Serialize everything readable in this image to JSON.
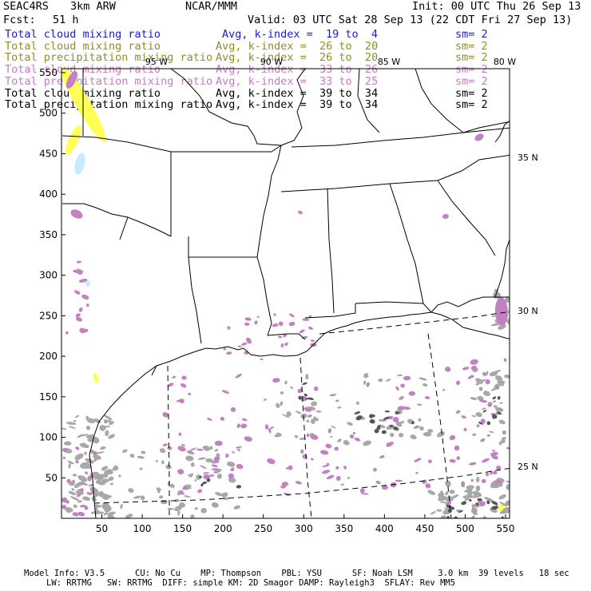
{
  "header": {
    "project": "SEAC4RS",
    "model": "3km ARW",
    "org": "NCAR/MMM",
    "init": "Init: 00 UTC Thu 26 Sep 13",
    "fcst_label": "Fcst:",
    "fcst_value": "51 h",
    "valid": "Valid: 03 UTC Sat 28 Sep 13 (22 CDT Fri 27 Sep 13)"
  },
  "legend_rows": [
    {
      "field": "Total cloud mixing ratio",
      "avg": "Avg, k-index =  19 to  4",
      "sm": "sm= 2",
      "color": "#1b1bd0"
    },
    {
      "field": "Total cloud mixing ratio",
      "avg": "Avg, k-index =  26 to  20",
      "sm": "sm= 2",
      "color": "#8f8f26"
    },
    {
      "field": "Total precipitation mixing ratio",
      "avg": "Avg, k-index =  26 to  20",
      "sm": "sm= 2",
      "color": "#8f8f26"
    },
    {
      "field": "Total cloud mixing ratio",
      "avg": "Avg, k-index =  33 to  26",
      "sm": "sm= 2",
      "color": "#c87ac8"
    },
    {
      "field": "Total precipitation mixing ratio",
      "avg": "Avg, k-index =  33 to  25",
      "sm": "sm= 2",
      "color": "#c87ac8"
    },
    {
      "field": "Total cloud mixing ratio",
      "avg": "Avg, k-index =  39 to  34",
      "sm": "sm= 2",
      "color": "#000000"
    },
    {
      "field": "Total precipitation mixing ratio",
      "avg": "Avg, k-index =  39 to  34",
      "sm": "sm= 2",
      "color": "#000000"
    }
  ],
  "map": {
    "lon_labels": [
      "95 W",
      "90 W",
      "85 W",
      "80 W"
    ],
    "lat_labels": [
      "35 N",
      "30 N",
      "25 N"
    ],
    "x_ticks": [
      "50",
      "100",
      "150",
      "200",
      "250",
      "300",
      "350",
      "400",
      "450",
      "500",
      "550"
    ],
    "y_ticks": [
      "50",
      "100",
      "150",
      "200",
      "250",
      "300",
      "350",
      "400",
      "450",
      "500",
      "550"
    ]
  },
  "colors": {
    "cloud_magenta": "#c281c2",
    "cloud_gray": "#a8a8a8",
    "cloud_dark": "#555555",
    "cloud_yellow": "#ffff55",
    "cloud_lightblue": "#c8ecff"
  },
  "footer": {
    "line1": "Model Info: V3.5      CU: No Cu    MP: Thompson    PBL: YSU      SF: Noah LSM     3.0 km  39 levels   18 sec",
    "line2": "LW: RRTMG   SW: RRTMG  DIFF: simple KM: 2D Smagor DAMP: Rayleigh3  SFLAY: Rev MM5"
  }
}
